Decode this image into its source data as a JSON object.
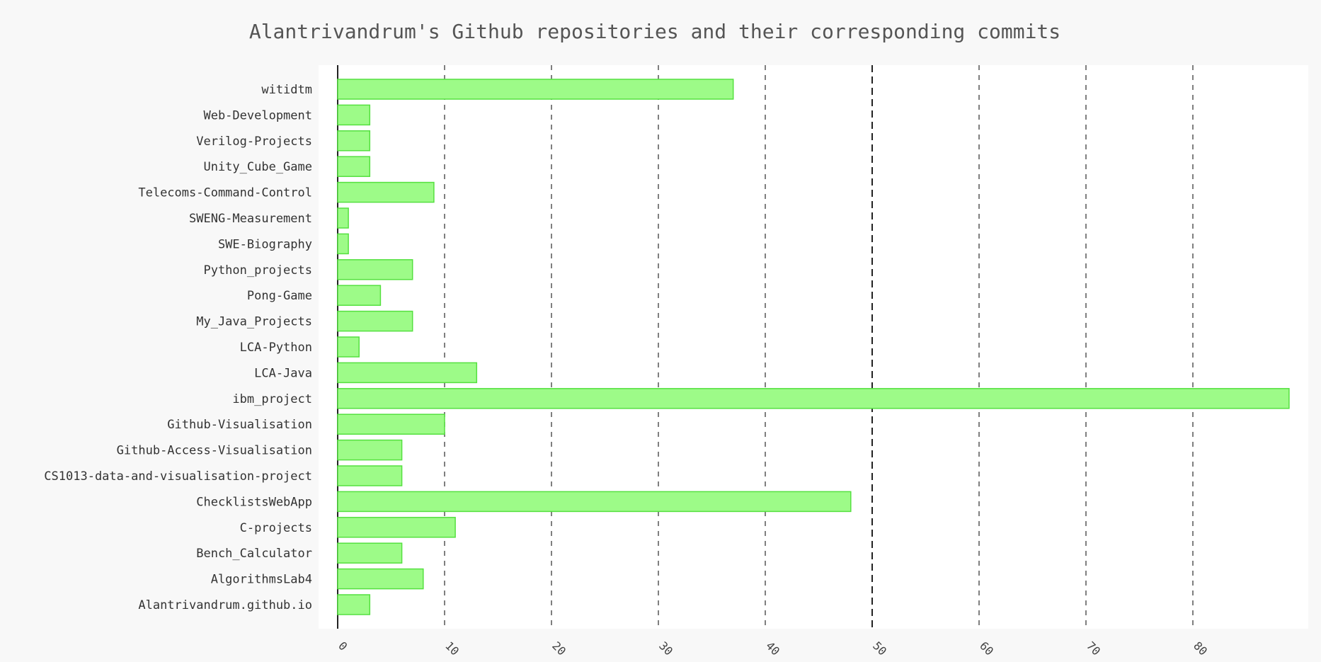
{
  "chart_data": {
    "type": "bar",
    "orientation": "horizontal",
    "title": "Alantrivandrum's Github repositories and their corresponding commits",
    "xlabel": "",
    "ylabel": "",
    "categories": [
      "witidtm",
      "Web-Development",
      "Verilog-Projects",
      "Unity_Cube_Game",
      "Telecoms-Command-Control",
      "SWENG-Measurement",
      "SWE-Biography",
      "Python_projects",
      "Pong-Game",
      "My_Java_Projects",
      "LCA-Python",
      "LCA-Java",
      "ibm_project",
      "Github-Visualisation",
      "Github-Access-Visualisation",
      "CS1013-data-and-visualisation-project",
      "ChecklistsWebApp",
      "C-projects",
      "Bench_Calculator",
      "AlgorithmsLab4",
      "Alantrivandrum.github.io"
    ],
    "values": [
      37,
      3,
      3,
      3,
      9,
      1,
      1,
      7,
      4,
      7,
      2,
      13,
      89,
      10,
      6,
      6,
      48,
      11,
      6,
      8,
      3
    ],
    "xlim": [
      0,
      90
    ],
    "x_ticks": [
      0,
      10,
      20,
      30,
      40,
      50,
      60,
      70,
      80
    ],
    "x_tick_labels": [
      "0",
      "10",
      "20",
      "30",
      "40",
      "50",
      "60",
      "70",
      "80"
    ],
    "grid": "vertical dashed",
    "legend": "none",
    "colors": {
      "bar_fill": "#9dfb88",
      "bar_stroke": "#55e040",
      "plot_background": "#ffffff",
      "page_background": "#f8f8f8"
    }
  }
}
